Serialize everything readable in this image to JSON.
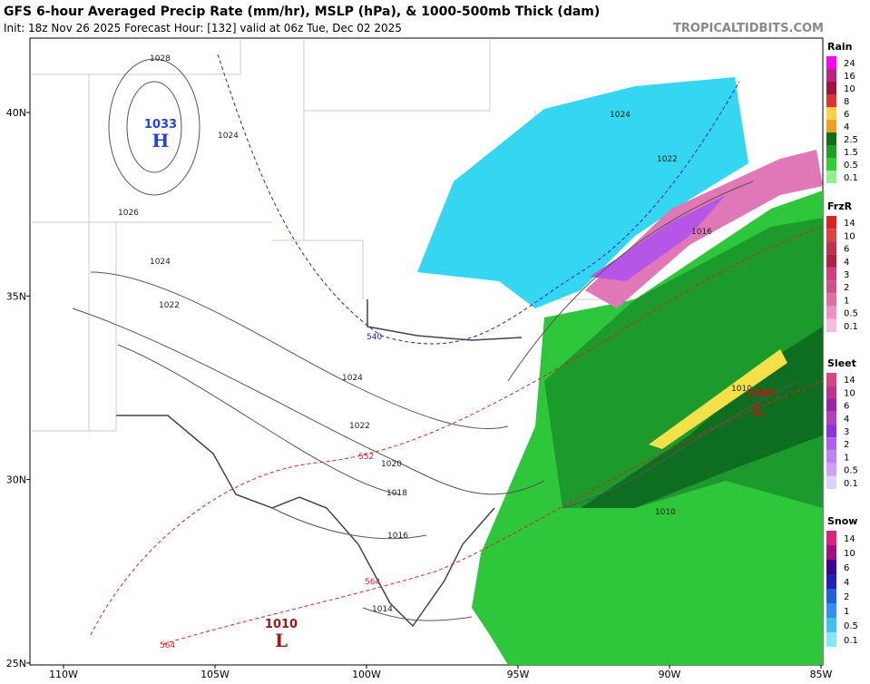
{
  "header": {
    "title": "GFS 6-hour Averaged Precip Rate (mm/hr), MSLP (hPa), & 1000-500mb Thick (dam)",
    "subtitle": "Init: 18z Nov 26 2025   Forecast Hour: [132]   valid at 06z Tue, Dec 02 2025",
    "site": "TROPICALTIDBITS.COM"
  },
  "map": {
    "lat_labels": [
      "40N",
      "35N",
      "30N",
      "25N"
    ],
    "lon_labels": [
      "110W",
      "105W",
      "100W",
      "95W",
      "90W",
      "85W"
    ],
    "isobar_labels": [
      "1028",
      "1024",
      "1026",
      "1024",
      "1022",
      "1024",
      "1022",
      "1020",
      "1018",
      "1016",
      "1014",
      "1024",
      "1022",
      "1016",
      "1010",
      "1010"
    ],
    "thickness_labels": [
      "540",
      "552",
      "564",
      "564"
    ],
    "centers": [
      {
        "value": "1033",
        "letter": "H"
      },
      {
        "value": "1010",
        "letter": "L"
      },
      {
        "value": "1009",
        "letter": "L"
      }
    ]
  },
  "legend": [
    {
      "title": "Rain",
      "labels": [
        "24",
        "16",
        "10",
        "8",
        "6",
        "4",
        "2.5",
        "1.5",
        "0.5",
        "0.1"
      ]
    },
    {
      "title": "FrzR",
      "labels": [
        "14",
        "10",
        "6",
        "4",
        "3",
        "2",
        "1",
        "0.5",
        "0.1"
      ]
    },
    {
      "title": "Sleet",
      "labels": [
        "14",
        "10",
        "6",
        "4",
        "3",
        "2",
        "1",
        "0.5",
        "0.1"
      ]
    },
    {
      "title": "Snow",
      "labels": [
        "14",
        "10",
        "6",
        "4",
        "2",
        "1",
        "0.5",
        "0.1"
      ]
    }
  ]
}
